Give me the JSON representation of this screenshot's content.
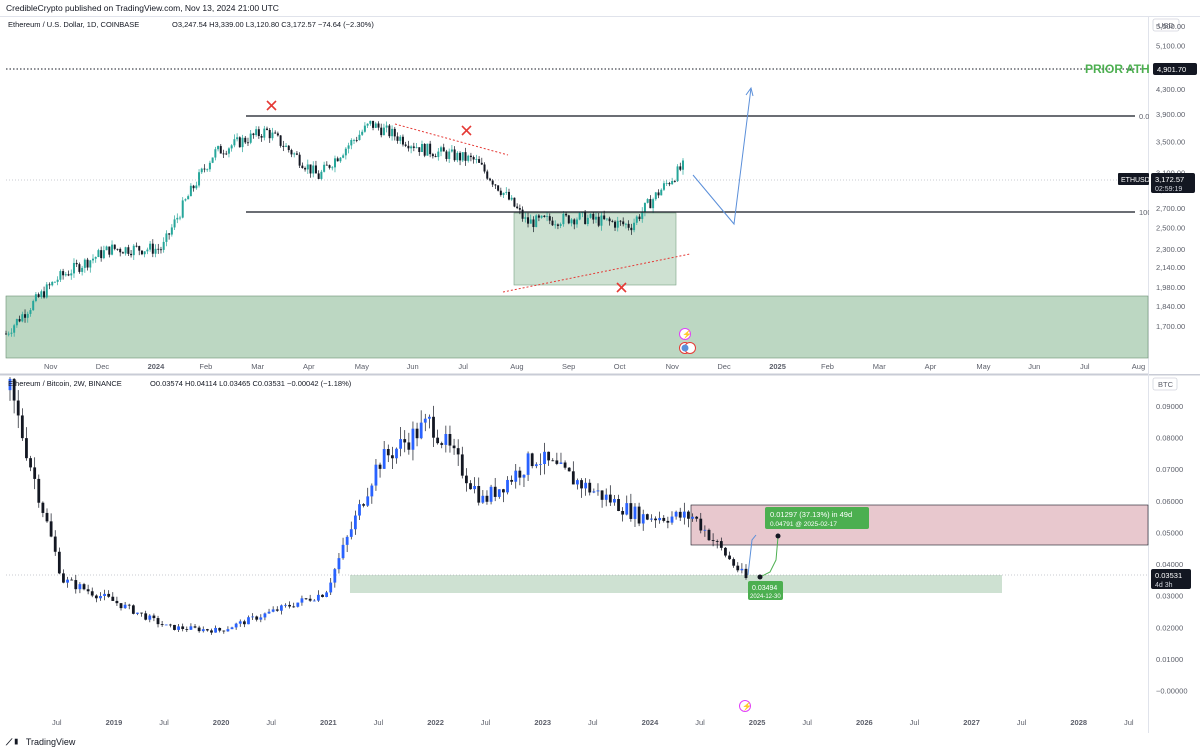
{
  "header": {
    "published": "CredibleCrypto published on TradingView.com, Nov 13, 2024 21:00 UTC"
  },
  "footer": {
    "brand": "TradingView",
    "logo": "tradingview-logo-icon"
  },
  "colors": {
    "up": "#26a69a",
    "down": "#131722",
    "zone_green": "#a5c9ad",
    "zone_red": "#d8a3ae",
    "ath_green": "#4caf50",
    "forecast_blue": "#5b8fd9",
    "cross_red": "#e53935"
  },
  "top_chart": {
    "legend_symbol": "Ethereum / U.S. Dollar, 1D, COINBASE",
    "legend_values": "O3,247.54  H3,339.00  L3,120.80  C3,172.57  −74.64 (−2.30%)",
    "currency": "USD",
    "annotation_ath": "PRIOR ATH",
    "price_tag_ath": "4,901.70",
    "price_tag_last": "3,172.57",
    "price_tag_symbol": "ETHUSD",
    "price_tag_timer": "02:59:19",
    "level_top_label": "0.0",
    "level_bottom_label": "100"
  },
  "bottom_chart": {
    "legend_symbol": "Ethereum / Bitcoin, 2W, BINANCE",
    "legend_values": "O0.03574  H0.04114  L0.03465  C0.03531  −0.00042 (−1.18%)",
    "currency": "BTC",
    "price_tag_last": "0.03531",
    "price_tag_timer": "4d 3h",
    "measure_label": "0.01297 (37.13%) in 49d",
    "measure_sub": "0.04791 @ 2025-02-17",
    "entry_label": "0.03494",
    "entry_date": "2024-12-30"
  },
  "chart_data": [
    {
      "type": "candlestick",
      "title": "Ethereum / U.S. Dollar, 1D, COINBASE",
      "y_scale": "log",
      "ylim": [
        1500,
        5700
      ],
      "y_ticks": [
        "5,500.00",
        "5,100.00",
        "4,700.00",
        "4,300.00",
        "3,900.00",
        "3,500.00",
        "3,100.00",
        "2,900.00",
        "2,700.00",
        "2,500.00",
        "2,300.00",
        "2,140.00",
        "1,980.00",
        "1,840.00",
        "1,700.00"
      ],
      "x_ticks": [
        "Nov",
        "Dec",
        "2024",
        "Feb",
        "Mar",
        "Apr",
        "May",
        "Jun",
        "Jul",
        "Aug",
        "Sep",
        "Oct",
        "Nov",
        "Dec",
        "2025",
        "Feb",
        "Mar",
        "Apr",
        "May",
        "Jun",
        "Jul",
        "Aug"
      ],
      "x": [
        "2023-10",
        "2023-11",
        "2023-12",
        "2024-01",
        "2024-02",
        "2024-03",
        "2024-04",
        "2024-05",
        "2024-06",
        "2024-07",
        "2024-08",
        "2024-09",
        "2024-10",
        "2024-11-13"
      ],
      "close": [
        1650,
        2050,
        2300,
        2300,
        3350,
        3650,
        3050,
        3750,
        3400,
        3250,
        2550,
        2600,
        2520,
        3172.57
      ],
      "levels": {
        "prior_ath": 4901.7,
        "range_top": 4080,
        "range_bottom": 2820,
        "support_zone": [
          1560,
          2000
        ],
        "accumulation_box": [
          2120,
          2810
        ]
      },
      "forecast_path": [
        {
          "x": "2024-11-13",
          "y": 3220
        },
        {
          "x": "2024-12-08",
          "y": 2700
        },
        {
          "x": "2024-12-18",
          "y": 4550
        }
      ]
    },
    {
      "type": "candlestick",
      "title": "Ethereum / Bitcoin, 2W, BINANCE",
      "ylim": [
        -0.003,
        0.096
      ],
      "y_ticks": [
        0.09,
        0.08,
        0.07,
        0.06,
        0.05,
        0.04,
        0.03,
        0.02,
        0.01,
        0.0
      ],
      "y_tick_labels": [
        "0.09000",
        "0.08000",
        "0.07000",
        "0.06000",
        "0.05000",
        "0.04000",
        "0.03000",
        "0.02000",
        "0.01000",
        "−0.00000"
      ],
      "x_ticks": [
        "Jul",
        "2019",
        "Jul",
        "2020",
        "Jul",
        "2021",
        "Jul",
        "2022",
        "Jul",
        "2023",
        "Jul",
        "2024",
        "Jul",
        "2025",
        "Jul",
        "2026",
        "Jul",
        "2027",
        "Jul",
        "2028",
        "Jul"
      ],
      "x": [
        "2018-01",
        "2018-07",
        "2019-01",
        "2019-07",
        "2020-01",
        "2020-07",
        "2021-01",
        "2021-05",
        "2021-12",
        "2022-06",
        "2022-12",
        "2023-06",
        "2023-12",
        "2024-04",
        "2024-11"
      ],
      "close": [
        0.095,
        0.035,
        0.028,
        0.02,
        0.019,
        0.025,
        0.031,
        0.072,
        0.085,
        0.06,
        0.074,
        0.064,
        0.055,
        0.055,
        0.03531
      ],
      "zones": {
        "resistance": [
          0.0455,
          0.0575
        ],
        "support": [
          0.0305,
          0.0355
        ]
      },
      "measure": {
        "change": 0.01297,
        "percent": 37.13,
        "days": 49,
        "target": 0.04791,
        "target_date": "2025-02-17",
        "entry": 0.03494,
        "entry_date": "2024-12-30"
      }
    }
  ]
}
